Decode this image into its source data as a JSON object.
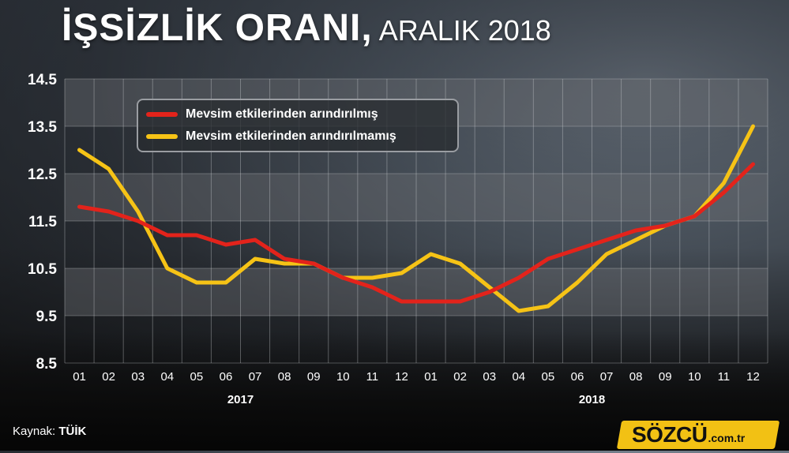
{
  "header": {
    "title_main": "İŞSİZLİK ORANI,",
    "title_sub": "ARALIK 2018"
  },
  "footer": {
    "source_label": "Kaynak:",
    "source_value": "TÜİK",
    "brand_name": "SÖZCÜ",
    "brand_domain": ".com.tr"
  },
  "colors": {
    "series1": "#e3231b",
    "series2": "#f6c316",
    "band": "#6b6e73"
  },
  "chart_data": {
    "type": "line",
    "title": "İŞSİZLİK ORANI, ARALIK 2018",
    "yticks": [
      "14.5",
      "13.5",
      "12.5",
      "11.5",
      "10.5",
      "9.5",
      "8.5"
    ],
    "ylim": [
      8.5,
      14.5
    ],
    "categories": [
      "01",
      "02",
      "03",
      "04",
      "05",
      "06",
      "07",
      "08",
      "09",
      "10",
      "11",
      "12",
      "01",
      "02",
      "03",
      "04",
      "05",
      "06",
      "07",
      "08",
      "09",
      "10",
      "11",
      "12"
    ],
    "year_labels": [
      {
        "label": "2017",
        "start": 0,
        "end": 11
      },
      {
        "label": "2018",
        "start": 12,
        "end": 23
      }
    ],
    "legend_position": "top-left",
    "series": [
      {
        "name": "Mevsim etkilerinden arındırılmış",
        "values": [
          11.8,
          11.7,
          11.5,
          11.2,
          11.2,
          11.0,
          11.1,
          10.7,
          10.6,
          10.3,
          10.1,
          9.8,
          9.8,
          9.8,
          10.0,
          10.3,
          10.7,
          10.9,
          11.1,
          11.3,
          11.4,
          11.6,
          12.1,
          12.7
        ]
      },
      {
        "name": "Mevsim etkilerinden arındırılmamış",
        "values": [
          13.0,
          12.6,
          11.7,
          10.5,
          10.2,
          10.2,
          10.7,
          10.6,
          10.6,
          10.3,
          10.3,
          10.4,
          10.8,
          10.6,
          10.1,
          9.6,
          9.7,
          10.2,
          10.8,
          11.1,
          11.4,
          11.6,
          12.3,
          13.5
        ]
      }
    ]
  }
}
